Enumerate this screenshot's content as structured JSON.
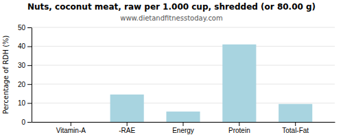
{
  "chart_data": {
    "type": "bar",
    "title": "Nuts, coconut meat, raw per 1.000 cup, shredded (or 80.00 g)",
    "subtitle": "www.dietandfitnesstoday.com",
    "ylabel": "Percentage of RDH (%)",
    "categories": [
      "Vitamin-A",
      "-RAE",
      "Energy",
      "Protein",
      "Total-Fat"
    ],
    "values": [
      0,
      14.5,
      5.5,
      41,
      9.5
    ],
    "color": "#a8d4e0",
    "ylim": [
      0,
      50
    ],
    "yticks": [
      0,
      10,
      20,
      30,
      40,
      50
    ],
    "grid": true
  }
}
